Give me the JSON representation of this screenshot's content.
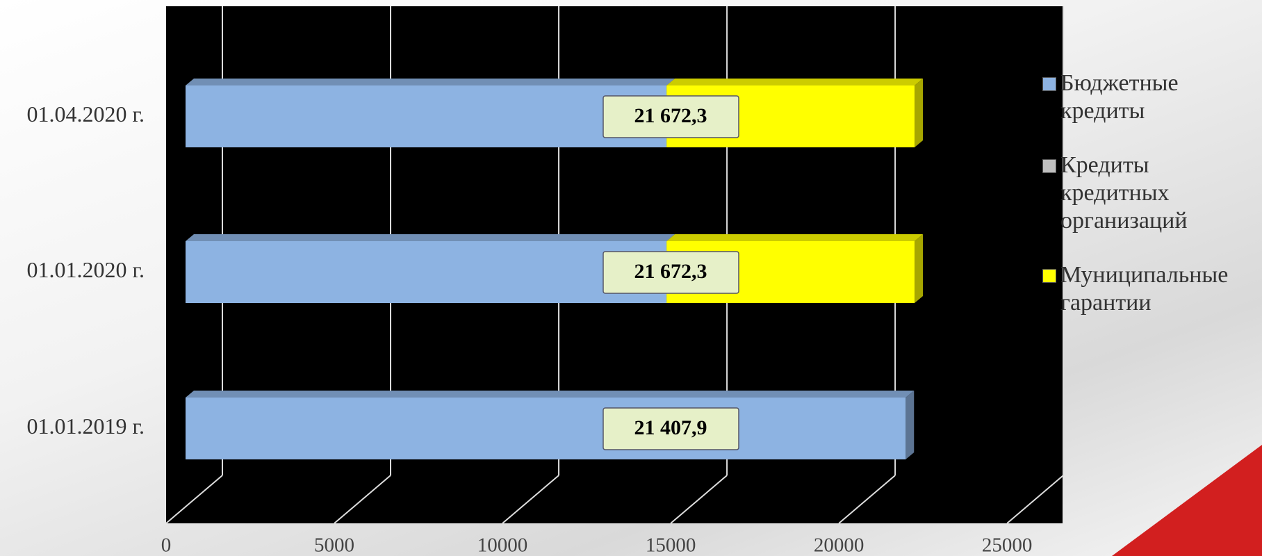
{
  "chart_data": {
    "type": "bar",
    "categories": [
      "01.01.2019 г.",
      "01.01.2020 г.",
      "01.04.2020 г."
    ],
    "series": [
      {
        "name": "Бюджетные кредиты",
        "color": "#8db3e2",
        "values": [
          21407.9,
          14300,
          14300
        ]
      },
      {
        "name": "Кредиты кредитных организаций",
        "color": "#bfbfbf",
        "values": [
          0,
          0,
          0
        ]
      },
      {
        "name": "Муниципальные гарантии",
        "color": "#ffff00",
        "values": [
          0,
          7372.3,
          7372.3
        ]
      }
    ],
    "totals": [
      21407.9,
      21672.3,
      21672.3
    ],
    "total_labels": [
      "21 407,9",
      "21 672,3",
      "21 672,3"
    ],
    "xlim": [
      0,
      26650
    ],
    "xticks": [
      0,
      5000,
      10000,
      15000,
      20000,
      25000
    ],
    "grid": true,
    "legend": "right"
  }
}
